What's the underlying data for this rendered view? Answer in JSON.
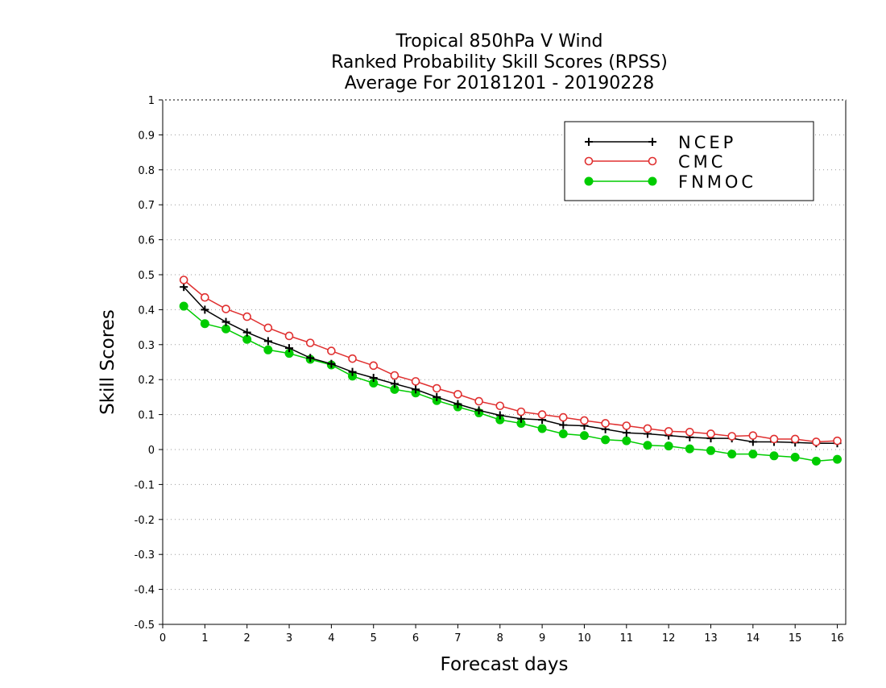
{
  "chart_data": {
    "type": "line",
    "title": [
      "Tropical 850hPa V Wind",
      "Ranked Probability Skill Scores (RPSS)",
      "Average For 20181201 - 20190228"
    ],
    "xlabel": "Forecast days",
    "ylabel": "Skill Scores",
    "xlim": [
      0,
      16.2
    ],
    "ylim": [
      -0.5,
      1
    ],
    "xticks": [
      0,
      1,
      2,
      3,
      4,
      5,
      6,
      7,
      8,
      9,
      10,
      11,
      12,
      13,
      14,
      15,
      16
    ],
    "yticks": [
      -0.5,
      -0.4,
      -0.3,
      -0.2,
      -0.1,
      0,
      0.1,
      0.2,
      0.3,
      0.4,
      0.5,
      0.6,
      0.7,
      0.8,
      0.9,
      1
    ],
    "ytick_labels": [
      "-0.5",
      "-0.4",
      "-0.3",
      "-0.2",
      "-0.1",
      "0",
      "0.1",
      "0.2",
      "0.3",
      "0.4",
      "0.5",
      "0.6",
      "0.7",
      "0.8",
      "0.9",
      "1"
    ],
    "grid": "horizontal-dotted",
    "legend_position": "top-right",
    "x": [
      0.5,
      1,
      1.5,
      2,
      2.5,
      3,
      3.5,
      4,
      4.5,
      5,
      5.5,
      6,
      6.5,
      7,
      7.5,
      8,
      8.5,
      9,
      9.5,
      10,
      10.5,
      11,
      11.5,
      12,
      12.5,
      13,
      13.5,
      14,
      14.5,
      15,
      15.5,
      16
    ],
    "series": [
      {
        "name": "NCEP",
        "color": "#000000",
        "marker": "plus",
        "values": [
          0.465,
          0.4,
          0.365,
          0.335,
          0.31,
          0.29,
          0.262,
          0.245,
          0.222,
          0.205,
          0.188,
          0.172,
          0.15,
          0.13,
          0.112,
          0.098,
          0.088,
          0.085,
          0.07,
          0.068,
          0.058,
          0.048,
          0.045,
          0.04,
          0.035,
          0.032,
          0.032,
          0.022,
          0.022,
          0.02,
          0.018,
          0.018
        ]
      },
      {
        "name": "CMC",
        "color": "#e03030",
        "marker": "open-circle",
        "values": [
          0.485,
          0.435,
          0.402,
          0.38,
          0.348,
          0.325,
          0.305,
          0.282,
          0.26,
          0.24,
          0.212,
          0.195,
          0.175,
          0.158,
          0.138,
          0.125,
          0.108,
          0.1,
          0.092,
          0.083,
          0.075,
          0.068,
          0.06,
          0.052,
          0.05,
          0.045,
          0.038,
          0.04,
          0.03,
          0.03,
          0.022,
          0.025
        ]
      },
      {
        "name": "FNMOC",
        "color": "#00cc00",
        "marker": "filled-circle",
        "values": [
          0.41,
          0.36,
          0.345,
          0.315,
          0.285,
          0.275,
          0.258,
          0.242,
          0.21,
          0.19,
          0.172,
          0.162,
          0.14,
          0.122,
          0.105,
          0.085,
          0.075,
          0.06,
          0.045,
          0.04,
          0.028,
          0.025,
          0.012,
          0.01,
          0.002,
          -0.003,
          -0.013,
          -0.013,
          -0.018,
          -0.022,
          -0.033,
          -0.028
        ]
      }
    ]
  }
}
